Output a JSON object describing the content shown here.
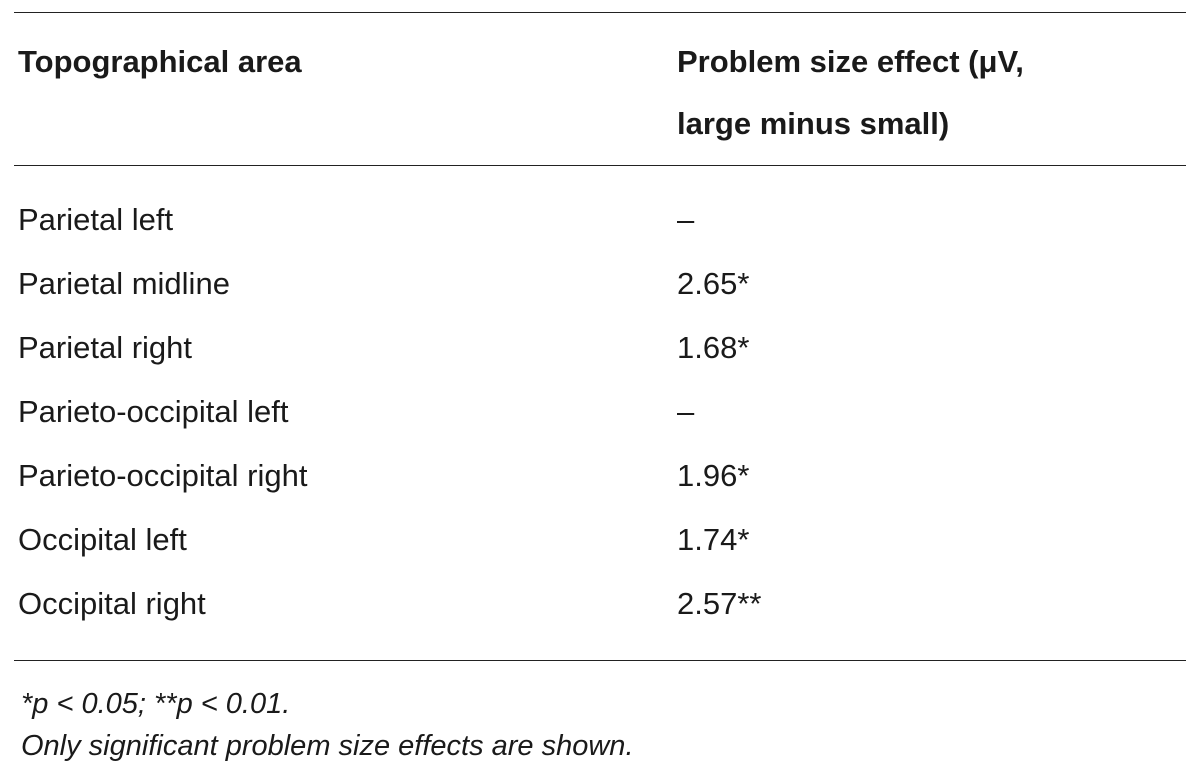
{
  "table": {
    "headers": {
      "area": "Topographical area",
      "effect_line1": "Problem size effect (μV,",
      "effect_line2": "large minus small)"
    },
    "rows": [
      {
        "area": "Parietal left",
        "effect": "–"
      },
      {
        "area": "Parietal midline",
        "effect": "2.65*"
      },
      {
        "area": "Parietal right",
        "effect": "1.68*"
      },
      {
        "area": "Parieto-occipital left",
        "effect": "–"
      },
      {
        "area": "Parieto-occipital right",
        "effect": "1.96*"
      },
      {
        "area": "Occipital left",
        "effect": "1.74*"
      },
      {
        "area": "Occipital right",
        "effect": "2.57**"
      }
    ]
  },
  "footnotes": {
    "significance": "*p < 0.05; **p < 0.01.",
    "note": "Only significant problem size effects are shown."
  }
}
